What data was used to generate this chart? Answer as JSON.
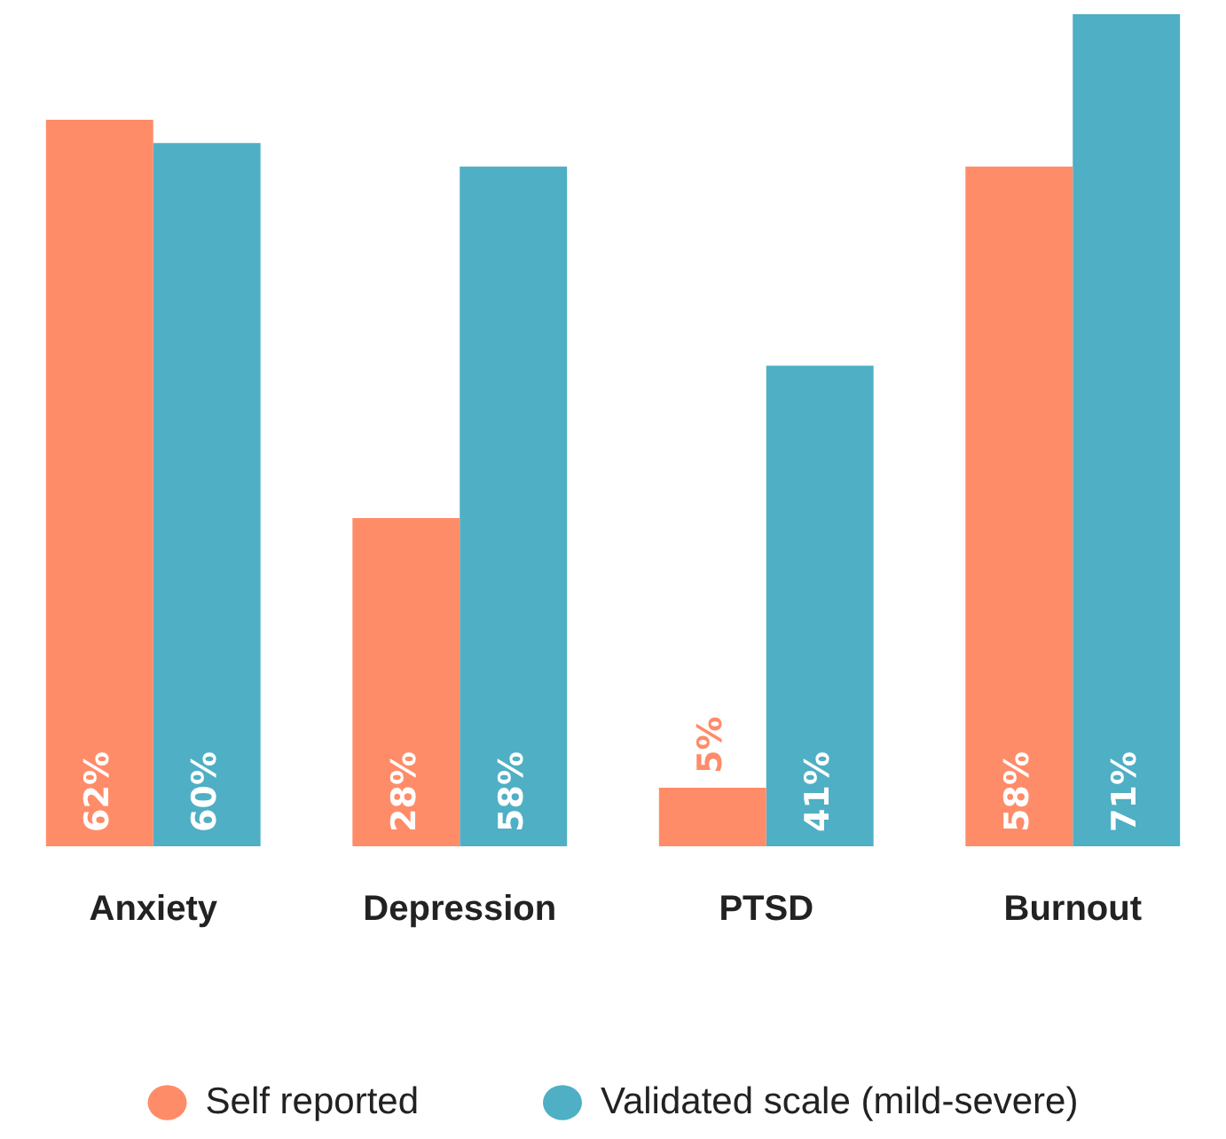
{
  "chart_data": {
    "type": "bar",
    "categories": [
      "Anxiety",
      "Depression",
      "PTSD",
      "Burnout"
    ],
    "series": [
      {
        "name": "Self reported",
        "color": "#ff8c69",
        "values": [
          62,
          28,
          5,
          58
        ],
        "value_labels": [
          "62%",
          "28%",
          "5%",
          "58%"
        ]
      },
      {
        "name": "Validated scale (mild-severe)",
        "color": "#4fafc4",
        "values": [
          60,
          58,
          41,
          71
        ],
        "value_labels": [
          "60%",
          "58%",
          "41%",
          "71%"
        ]
      }
    ],
    "ylim": [
      0,
      71
    ],
    "legend": "bottom",
    "marker": "circle"
  }
}
